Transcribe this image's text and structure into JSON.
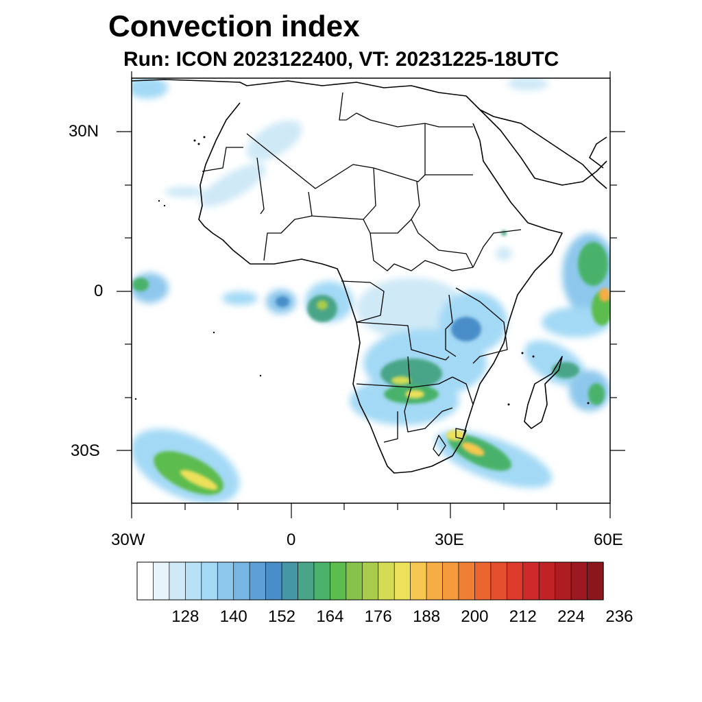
{
  "title": "Convection index",
  "subtitle": "Run: ICON 2023122400,  VT: 20231225-18UTC",
  "map": {
    "lat_labels": [
      "30N",
      "0",
      "30S"
    ],
    "lon_labels": [
      "30W",
      "0",
      "30E",
      "60E"
    ],
    "extent": {
      "lon_min": -30,
      "lon_max": 60,
      "lat_min": -40,
      "lat_max": 40
    }
  },
  "colorbar": {
    "labels": [
      "128",
      "140",
      "152",
      "164",
      "176",
      "188",
      "200",
      "212",
      "224",
      "236"
    ],
    "colors": [
      "#ffffff",
      "#e8f4fb",
      "#cfe9f7",
      "#b8e0f6",
      "#a3d9f5",
      "#8dc8ec",
      "#77b6e3",
      "#5d9fd6",
      "#4a8ec9",
      "#4597a6",
      "#48a587",
      "#4ab26b",
      "#5cbc4d",
      "#86c24c",
      "#a9cc4c",
      "#d4dc55",
      "#ede05a",
      "#f7c84f",
      "#f6ad45",
      "#f59a3d",
      "#f07f36",
      "#ea6530",
      "#e4502d",
      "#dc3a2b",
      "#cf2a2a",
      "#c02226",
      "#ae1d22",
      "#9c1a1f",
      "#8b171c"
    ]
  },
  "chart_data": {
    "type": "heatmap",
    "title": "Convection index",
    "subtitle": "Run: ICON 2023122400,  VT: 20231225-18UTC",
    "x_range": [
      -30,
      60
    ],
    "y_range": [
      -40,
      40
    ],
    "x_ticks": [
      "30W",
      "0",
      "30E",
      "60E"
    ],
    "y_ticks": [
      "30N",
      "0",
      "30S"
    ],
    "colorbar_ticks": [
      128,
      140,
      152,
      164,
      176,
      188,
      200,
      212,
      224,
      236
    ]
  }
}
